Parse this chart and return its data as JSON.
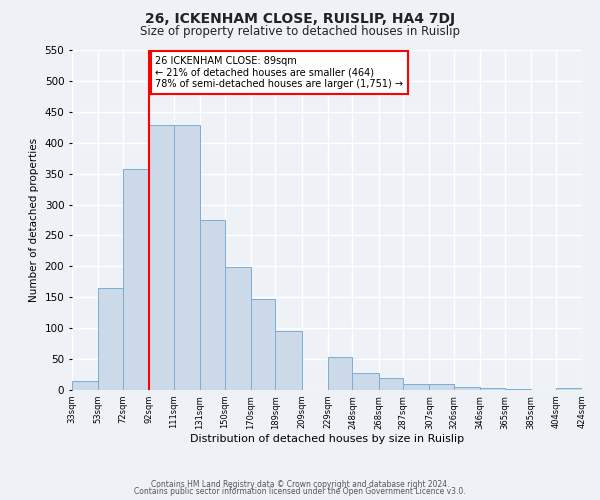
{
  "title": "26, ICKENHAM CLOSE, RUISLIP, HA4 7DJ",
  "subtitle": "Size of property relative to detached houses in Ruislip",
  "xlabel": "Distribution of detached houses by size in Ruislip",
  "ylabel": "Number of detached properties",
  "bar_color": "#ccd9e8",
  "bar_edge_color": "#7aaed4",
  "vline_x": 92,
  "vline_color": "red",
  "annotation_line1": "26 ICKENHAM CLOSE: 89sqm",
  "annotation_line2": "← 21% of detached houses are smaller (464)",
  "annotation_line3": "78% of semi-detached houses are larger (1,751) →",
  "annotation_box_color": "white",
  "annotation_box_edge": "red",
  "bins_left_edges": [
    33,
    53,
    72,
    92,
    111,
    131,
    150,
    170,
    189,
    209,
    229,
    248,
    268,
    287,
    307,
    326,
    346,
    365,
    385,
    404
  ],
  "bin_widths": [
    20,
    19,
    20,
    19,
    20,
    19,
    20,
    19,
    20,
    20,
    19,
    20,
    19,
    20,
    19,
    20,
    19,
    20,
    19,
    20
  ],
  "bin_labels": [
    "33sqm",
    "53sqm",
    "72sqm",
    "92sqm",
    "111sqm",
    "131sqm",
    "150sqm",
    "170sqm",
    "189sqm",
    "209sqm",
    "229sqm",
    "248sqm",
    "268sqm",
    "287sqm",
    "307sqm",
    "326sqm",
    "346sqm",
    "365sqm",
    "385sqm",
    "404sqm",
    "424sqm"
  ],
  "bar_heights": [
    15,
    165,
    358,
    428,
    428,
    275,
    199,
    147,
    96,
    0,
    54,
    27,
    20,
    10,
    10,
    5,
    4,
    2,
    0,
    3
  ],
  "ylim": [
    0,
    550
  ],
  "yticks": [
    0,
    50,
    100,
    150,
    200,
    250,
    300,
    350,
    400,
    450,
    500,
    550
  ],
  "footer_line1": "Contains HM Land Registry data © Crown copyright and database right 2024.",
  "footer_line2": "Contains public sector information licensed under the Open Government Licence v3.0.",
  "background_color": "#eef2f7",
  "grid_color": "#ffffff"
}
